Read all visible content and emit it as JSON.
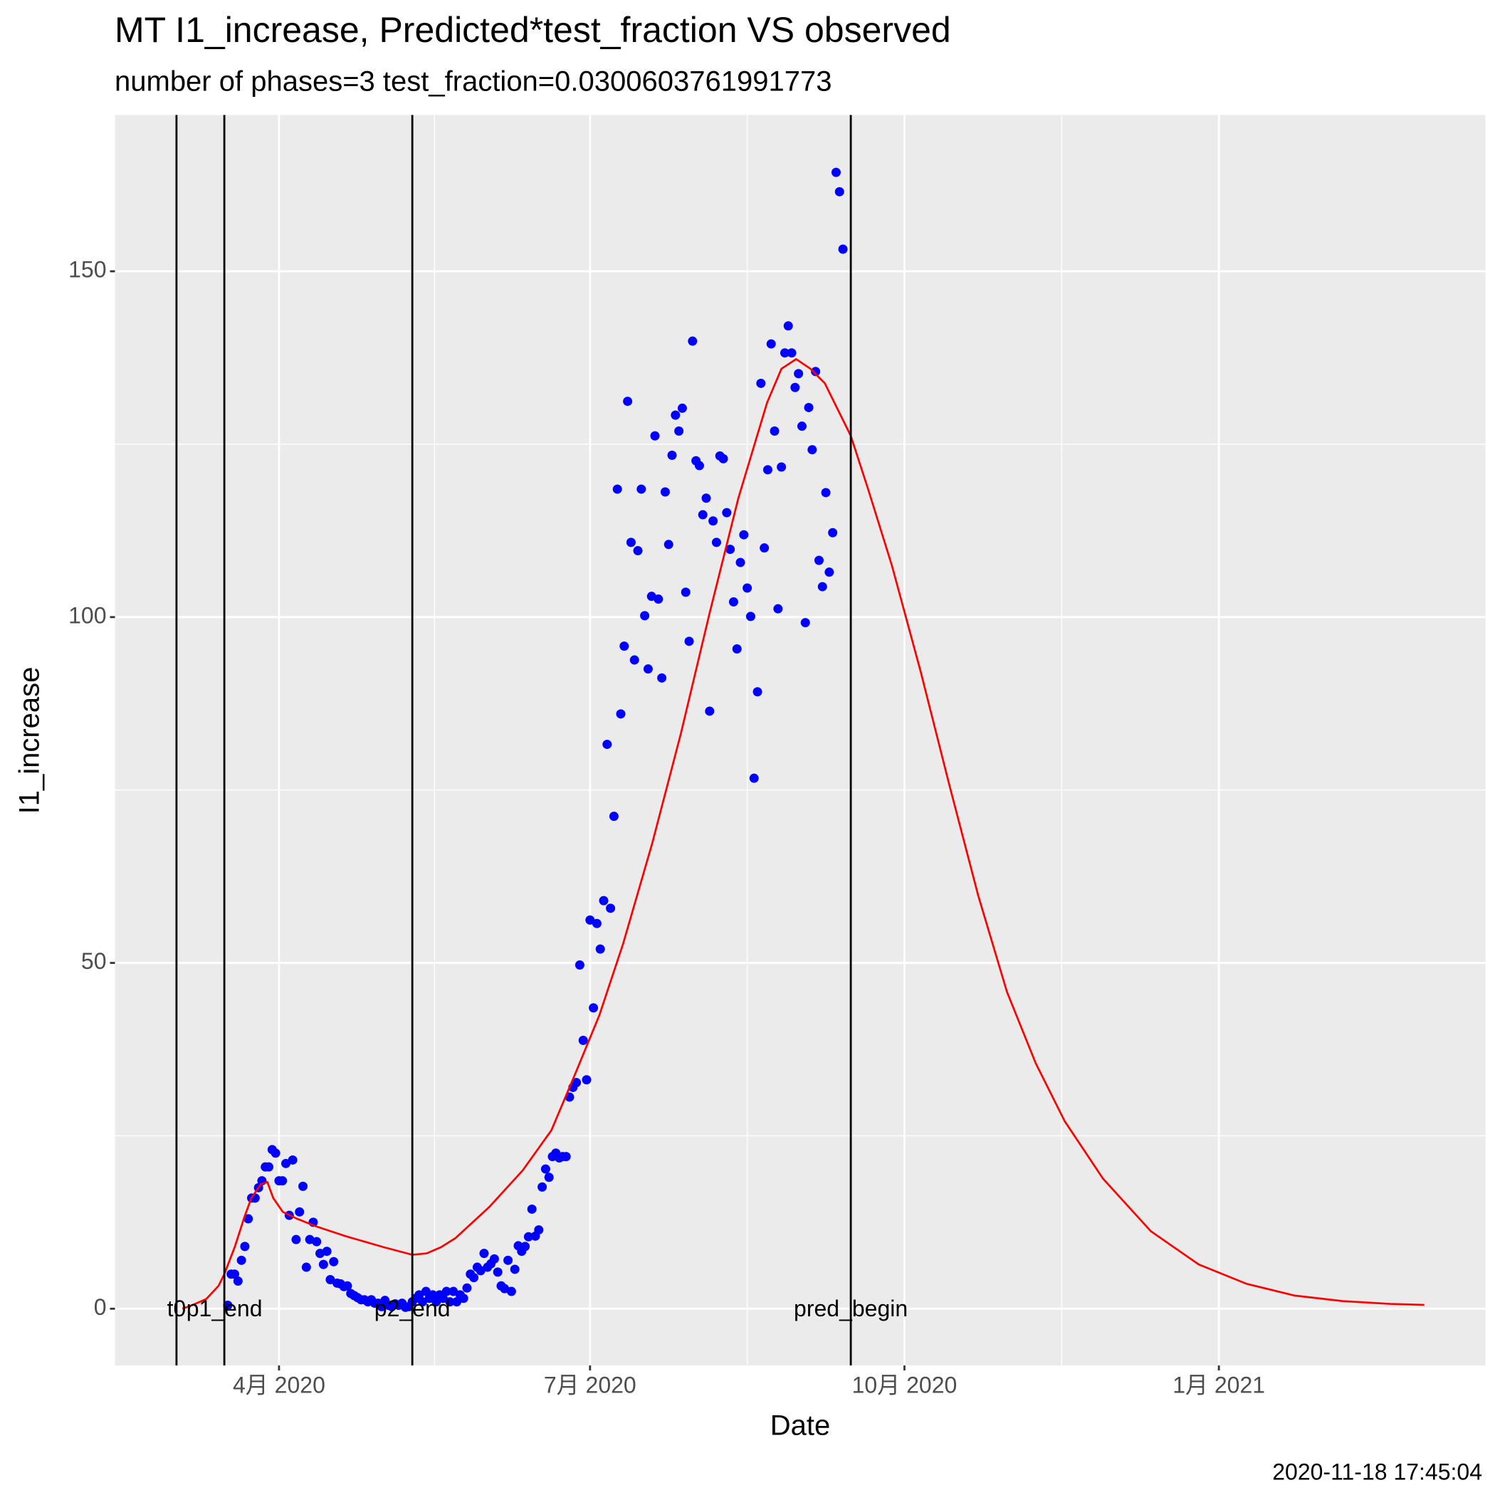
{
  "chart_data": {
    "type": "scatter",
    "title": "MT I1_increase, Predicted*test_fraction VS observed",
    "subtitle": "number of phases=3   test_fraction=0.0300603761991773",
    "x_label": "Date",
    "y_label": "I1_increase",
    "caption": "2020-11-18 17:45:04",
    "xlim": [
      43,
      444
    ],
    "ylim": [
      -8.2,
      172.6
    ],
    "xticks": [
      {
        "value": 91,
        "label": "4月 2020"
      },
      {
        "value": 182,
        "label": "7月 2020"
      },
      {
        "value": 274,
        "label": "10月 2020"
      },
      {
        "value": 366,
        "label": "1月 2021"
      }
    ],
    "yticks": [
      0,
      50,
      100,
      150
    ],
    "grid": true,
    "vlines": [
      {
        "x": 61,
        "label": "t0"
      },
      {
        "x": 75,
        "label": "p1_end"
      },
      {
        "x": 130,
        "label": "p2_end"
      },
      {
        "x": 258.3,
        "label": "pred_begin"
      }
    ],
    "series": [
      {
        "type": "scatter",
        "color": "#0000ff",
        "x": [
          76,
          77,
          78,
          79,
          80,
          81,
          82,
          83,
          84,
          85,
          86,
          87,
          88,
          89,
          90,
          91,
          92,
          93,
          94,
          95,
          96,
          97,
          98,
          99,
          100,
          101,
          102,
          103,
          104,
          105,
          106,
          107,
          108,
          109,
          110,
          111,
          112,
          113,
          114,
          115,
          116,
          117,
          118,
          119,
          120,
          121,
          122,
          123,
          124,
          125,
          126,
          127,
          128,
          129,
          130,
          131,
          132,
          133,
          134,
          135,
          136,
          137,
          138,
          139,
          140,
          141,
          142,
          143,
          144,
          145,
          146,
          147,
          148,
          149,
          150,
          151,
          152,
          153,
          154,
          155,
          156,
          157,
          158,
          159,
          160,
          161,
          162,
          163,
          164,
          165,
          166,
          167,
          168,
          169,
          170,
          171,
          172,
          173,
          174,
          175,
          176,
          177,
          178,
          179,
          180,
          181,
          182,
          183,
          184,
          185,
          186,
          187,
          188,
          189,
          190,
          191,
          192,
          193,
          194,
          195,
          196,
          197,
          198,
          199,
          200,
          201,
          202,
          203,
          204,
          205,
          206,
          207,
          208,
          209,
          210,
          211,
          212,
          213,
          214,
          215,
          216,
          217,
          218,
          219,
          220,
          221,
          222,
          223,
          224,
          225,
          226,
          227,
          228,
          229,
          230,
          231,
          232,
          233,
          234,
          235,
          236,
          237,
          238,
          239,
          240,
          241,
          242,
          243,
          244,
          245,
          246,
          247,
          248,
          249,
          250,
          251,
          252,
          253,
          254,
          255,
          256
        ],
        "values": [
          0.5,
          5,
          5,
          4,
          7,
          9,
          13,
          16,
          16,
          17.5,
          18.5,
          20.5,
          20.5,
          23,
          22.5,
          18.5,
          18.5,
          21,
          13.5,
          21.5,
          10,
          14,
          17.7,
          6,
          10,
          12.5,
          9.7,
          8,
          6.4,
          8.3,
          4.2,
          6.8,
          3.7,
          3.6,
          3.2,
          3.3,
          2.2,
          1.9,
          1.6,
          1.3,
          1.3,
          1,
          1.3,
          0.8,
          0.8,
          0.3,
          1.2,
          0.5,
          0.3,
          0.7,
          0.5,
          0.8,
          0.2,
          0.3,
          1,
          1.5,
          2,
          1,
          2.5,
          1.5,
          2,
          1,
          2,
          1.5,
          2.5,
          1,
          2.5,
          1,
          2,
          1.5,
          3,
          5,
          4.5,
          6,
          5.5,
          8,
          6,
          6.5,
          7.2,
          5.3,
          3.3,
          2.9,
          7,
          2.5,
          5.7,
          9.1,
          8.3,
          9,
          10.4,
          14.4,
          10.5,
          11.4,
          17.6,
          20.2,
          19,
          22,
          22.5,
          21.8,
          22,
          22,
          30.6,
          32,
          32.7,
          49.7,
          38.8,
          33.1,
          56.2,
          43.5,
          55.7,
          52,
          59,
          81.6,
          57.9,
          71.2,
          118.5,
          86,
          95.8,
          131.2,
          110.8,
          93.8,
          109.6,
          118.5,
          100.2,
          92.5,
          103,
          126.2,
          102.6,
          91.2,
          118.1,
          110.5,
          123.4,
          129.2,
          126.9,
          130.2,
          103.6,
          96.5,
          139.9,
          122.6,
          121.9,
          114.8,
          117.2,
          86.4,
          113.9,
          110.8,
          123.3,
          122.9,
          115.1,
          109.8,
          102.2,
          95.4,
          107.9,
          111.9,
          104.2,
          100.1,
          76.7,
          89.2,
          133.8,
          110,
          121.3,
          139.5,
          126.9,
          101.2,
          121.7,
          138.2,
          142.1,
          138.2,
          133.2,
          135.2,
          127.6,
          99.2,
          130.3,
          124.2,
          135.5,
          108.2,
          104.4,
          118,
          106.5,
          112.2,
          164.3,
          161.5,
          153.2
        ]
      },
      {
        "type": "line",
        "color": "#ff0000",
        "x": [
          62.7,
          65.5,
          69.7,
          73.3,
          75.0,
          78.1,
          80.9,
          82.9,
          85.7,
          87.6,
          89.3,
          92.1,
          96.3,
          101.9,
          110.4,
          121.6,
          130.0,
          134.2,
          138.4,
          142.6,
          152.5,
          162.3,
          170.7,
          177.7,
          184.7,
          191.7,
          200.2,
          208.6,
          217.0,
          225.4,
          233.8,
          238.0,
          242.3,
          246.5,
          250.7,
          254.9,
          258.3,
          263.3,
          270.3,
          278.7,
          287.2,
          295.6,
          304.0,
          312.4,
          320.9,
          332.1,
          346.1,
          360.1,
          374.1,
          388.2,
          402.2,
          416.2,
          426.1
        ],
        "values": [
          0,
          0.5,
          1.4,
          3.3,
          5,
          9,
          13.3,
          16,
          18,
          18.3,
          16,
          14,
          13,
          11.9,
          10.5,
          8.9,
          7.8,
          8,
          8.9,
          10.2,
          14.7,
          20,
          25.8,
          34,
          42.4,
          52.8,
          67.3,
          83.2,
          100.6,
          117.2,
          131,
          135.9,
          137.3,
          135.9,
          133.8,
          129.6,
          126.2,
          118.6,
          107.5,
          92.2,
          75.6,
          59.7,
          45.8,
          35.5,
          27.1,
          18.8,
          11.2,
          6.4,
          3.6,
          1.9,
          1.1,
          0.7,
          0.55
        ]
      }
    ]
  }
}
